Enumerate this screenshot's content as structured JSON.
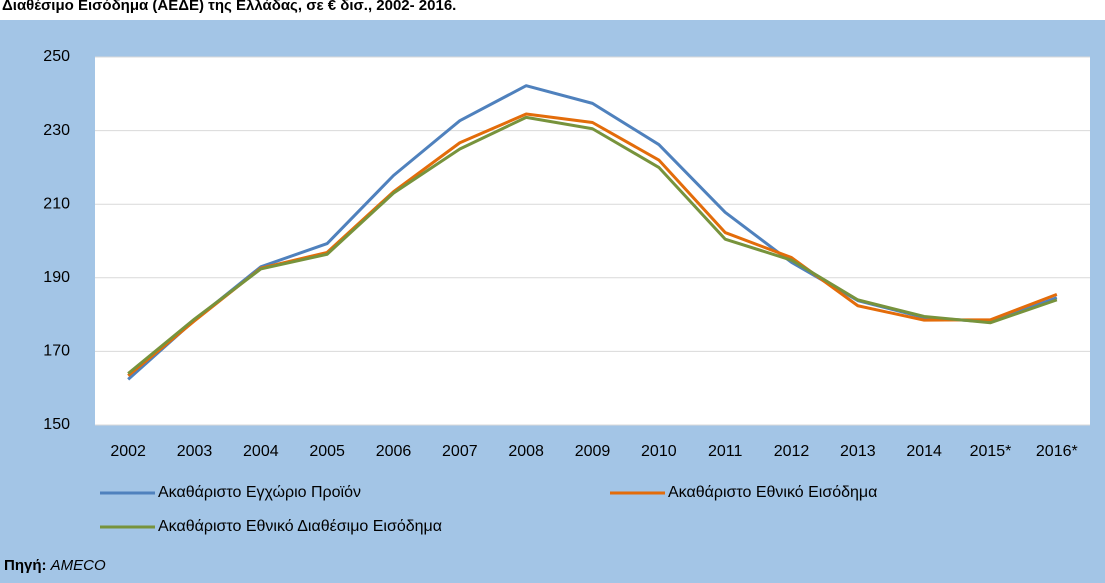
{
  "chart_data": {
    "type": "line",
    "title": "Διαθέσιμο Εισόδημα (ΑΕΔΕ) της Ελλάδας, σε € δισ., 2002- 2016.",
    "categories": [
      "2002",
      "2003",
      "2004",
      "2005",
      "2006",
      "2007",
      "2008",
      "2009",
      "2010",
      "2011",
      "2012",
      "2013",
      "2014",
      "2015*",
      "2016*"
    ],
    "series": [
      {
        "name": "Ακαθάριστο Εγχώριο Προϊόν",
        "color": "#4f81bd",
        "values": [
          162.4,
          178.5,
          193.0,
          199.3,
          217.8,
          232.7,
          242.2,
          237.4,
          226.2,
          207.8,
          194.2,
          183.8,
          179.2,
          178.0,
          184.6
        ]
      },
      {
        "name": "Ακαθάριστο Εθνικό Εισόδημα",
        "color": "#e36c0a",
        "values": [
          163.4,
          178.3,
          192.6,
          196.9,
          213.4,
          226.7,
          234.5,
          232.2,
          222.0,
          202.3,
          195.5,
          182.4,
          178.5,
          178.6,
          185.5
        ]
      },
      {
        "name": "Ακαθάριστο Εθνικό Διαθέσιμο Εισόδημα",
        "color": "#77933c",
        "values": [
          164.0,
          178.8,
          192.4,
          196.4,
          213.0,
          225.0,
          233.6,
          230.5,
          220.0,
          200.5,
          194.8,
          184.0,
          179.5,
          177.8,
          184.0
        ]
      }
    ],
    "ylim": [
      150,
      250
    ],
    "yticks": [
      150,
      170,
      190,
      210,
      230,
      250
    ],
    "grid": true,
    "source": {
      "label": "Πηγή:",
      "text": "AMECO"
    }
  }
}
